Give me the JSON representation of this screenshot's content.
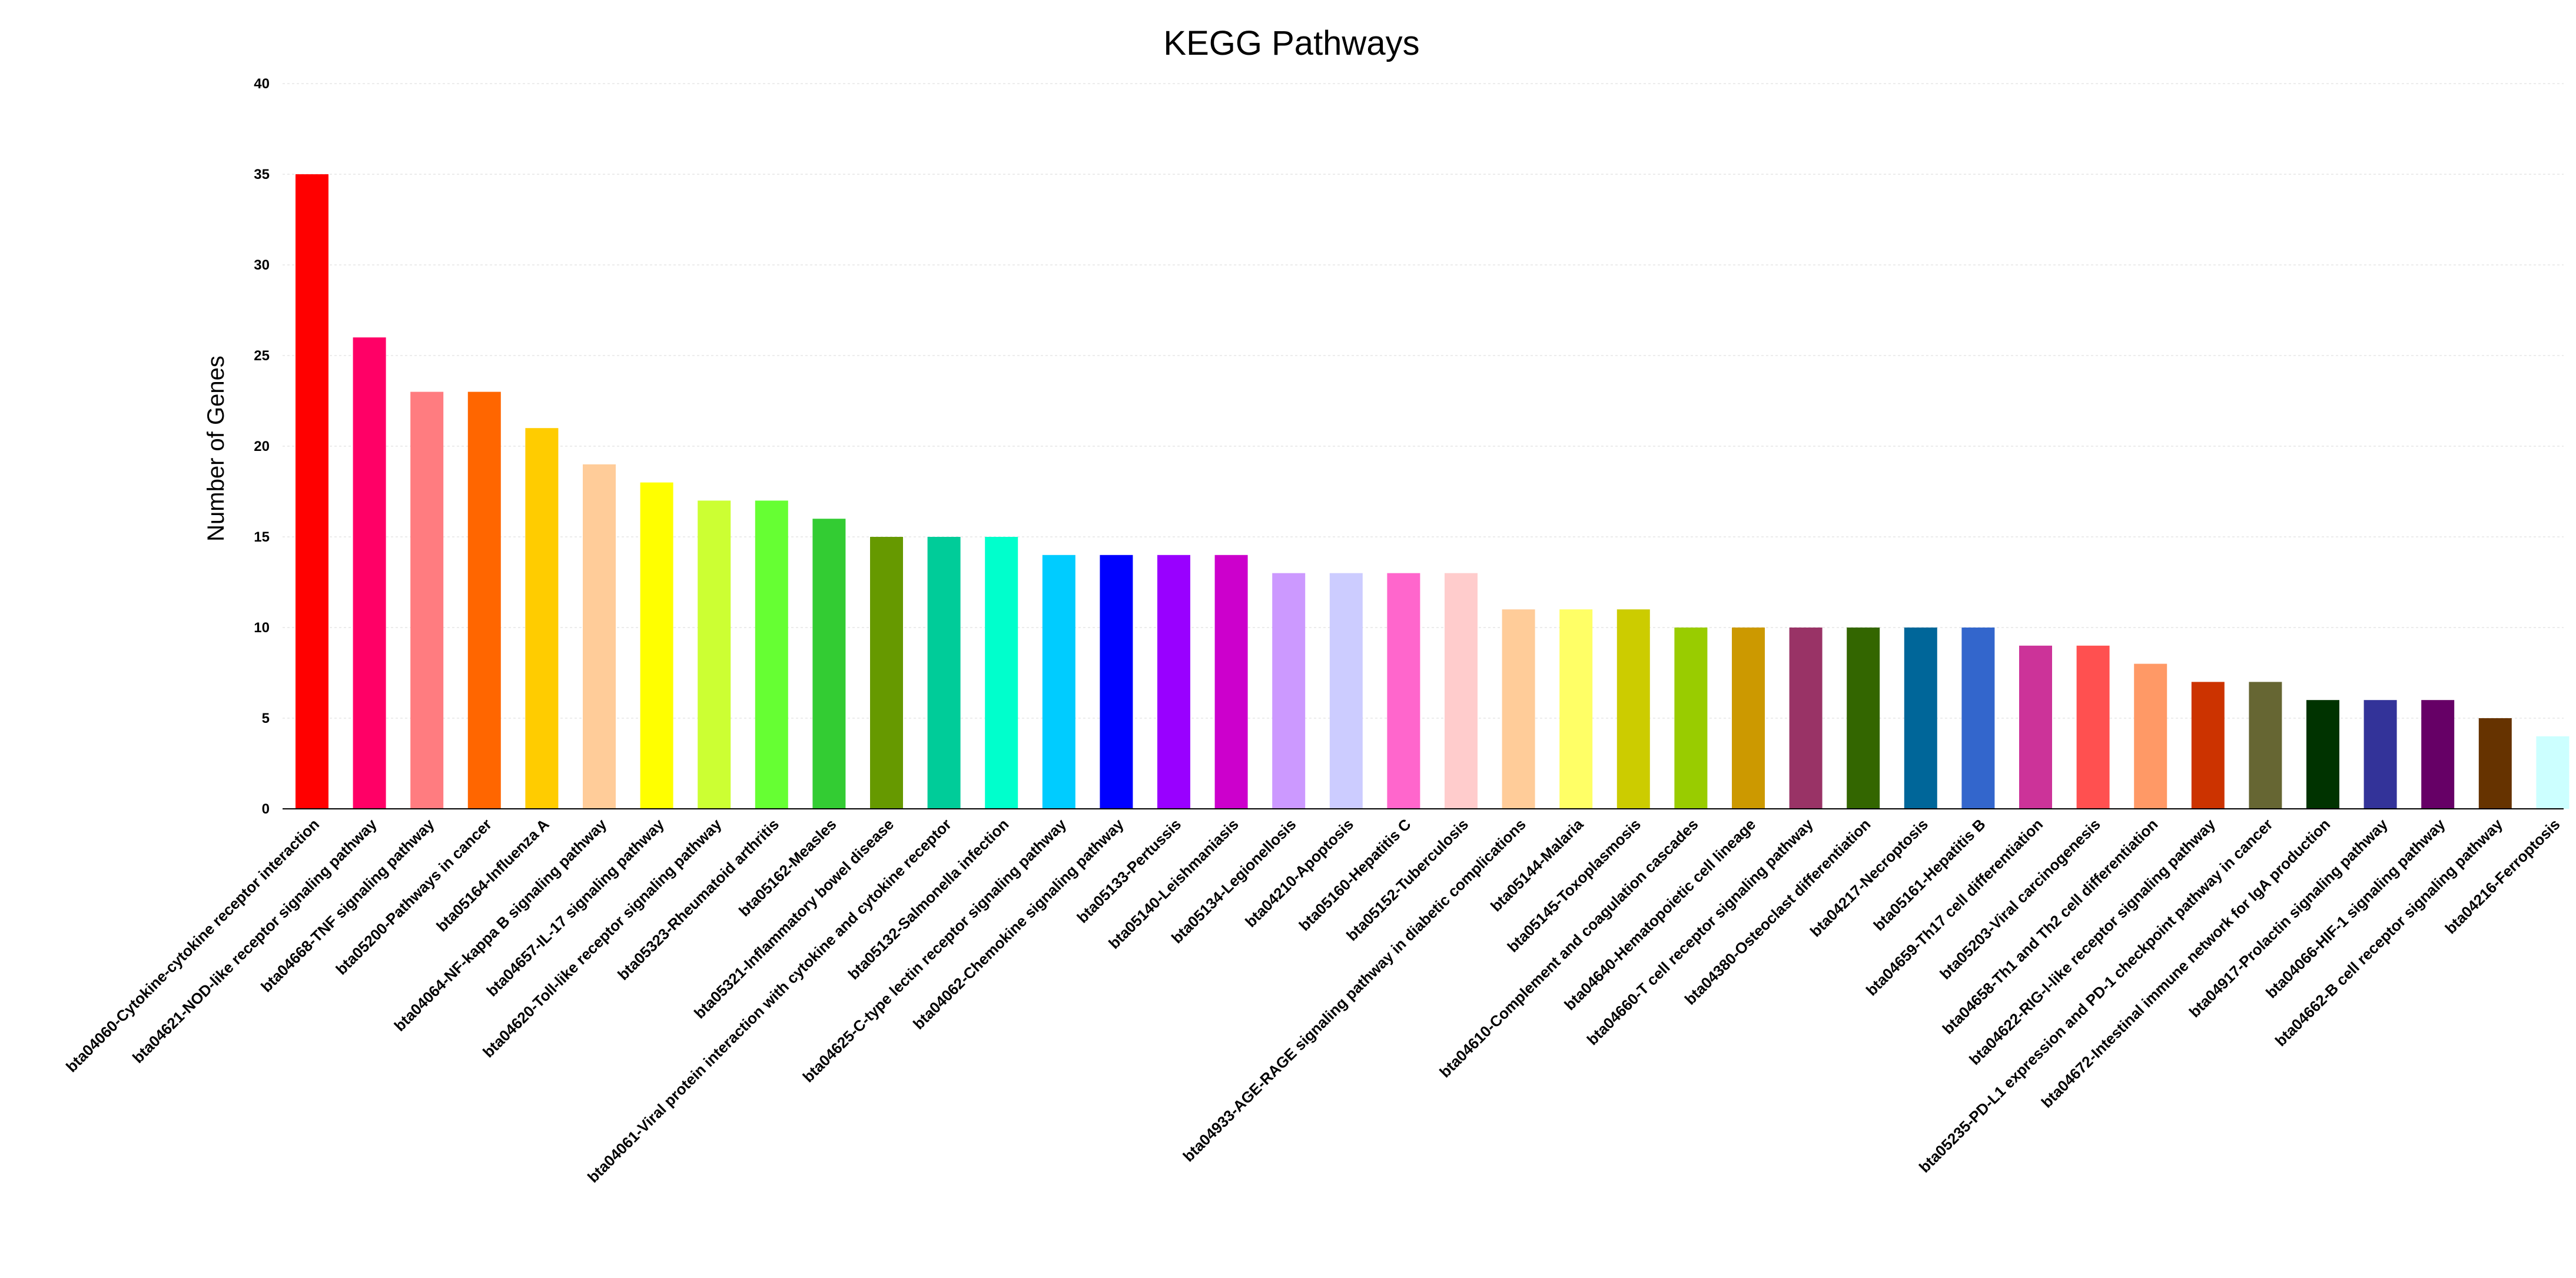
{
  "chart_data": {
    "type": "bar",
    "title": "KEGG Pathways",
    "xlabel": "",
    "ylabel": "Number of Genes",
    "ylim": [
      0,
      40
    ],
    "yticks": [
      0,
      5,
      10,
      15,
      20,
      25,
      30,
      35,
      40
    ],
    "grid": true,
    "legend": "none",
    "categories": [
      "bta04060-Cytokine-cytokine receptor interaction",
      "bta04621-NOD-like receptor signaling pathway",
      "bta04668-TNF signaling pathway",
      "bta05200-Pathways in cancer",
      "bta05164-Influenza A",
      "bta04064-NF-kappa B signaling pathway",
      "bta04657-IL-17 signaling pathway",
      "bta04620-Toll-like receptor signaling pathway",
      "bta05323-Rheumatoid arthritis",
      "bta05162-Measles",
      "bta05321-Inflammatory bowel disease",
      "bta04061-Viral protein interaction with cytokine and cytokine receptor",
      "bta05132-Salmonella infection",
      "bta04625-C-type lectin receptor signaling pathway",
      "bta04062-Chemokine signaling pathway",
      "bta05133-Pertussis",
      "bta05140-Leishmaniasis",
      "bta05134-Legionellosis",
      "bta04210-Apoptosis",
      "bta05160-Hepatitis C",
      "bta05152-Tuberculosis",
      "bta04933-AGE-RAGE signaling pathway in diabetic complications",
      "bta05144-Malaria",
      "bta05145-Toxoplasmosis",
      "bta04610-Complement and coagulation cascades",
      "bta04640-Hematopoietic cell lineage",
      "bta04660-T cell receptor signaling pathway",
      "bta04380-Osteoclast differentiation",
      "bta04217-Necroptosis",
      "bta05161-Hepatitis B",
      "bta04659-Th17 cell differentiation",
      "bta05203-Viral carcinogenesis",
      "bta04658-Th1 and Th2 cell differentiation",
      "bta04622-RIG-I-like receptor signaling pathway",
      "bta05235-PD-L1 expression and PD-1 checkpoint pathway in cancer",
      "bta04672-Intestinal immune network for IgA production",
      "bta04917-Prolactin signaling pathway",
      "bta04066-HIF-1 signaling pathway",
      "bta04662-B cell receptor signaling pathway",
      "bta04216-Ferroptosis"
    ],
    "values": [
      35,
      26,
      23,
      23,
      21,
      19,
      18,
      17,
      17,
      16,
      15,
      15,
      15,
      14,
      14,
      14,
      14,
      13,
      13,
      13,
      13,
      11,
      11,
      11,
      10,
      10,
      10,
      10,
      10,
      10,
      9,
      9,
      8,
      7,
      7,
      6,
      6,
      6,
      5,
      4
    ],
    "colors": [
      "#ff0000",
      "#ff0066",
      "#ff7c80",
      "#ff6600",
      "#ffcc00",
      "#ffcc99",
      "#ffff00",
      "#ccff33",
      "#66ff33",
      "#33cc33",
      "#669900",
      "#00cc99",
      "#00ffcc",
      "#00ccff",
      "#0000ff",
      "#9900ff",
      "#cc00cc",
      "#cc99ff",
      "#ccccff",
      "#ff66cc",
      "#ffcccc",
      "#ffcc99",
      "#ffff66",
      "#cccc00",
      "#99cc00",
      "#cc9900",
      "#993366",
      "#336600",
      "#006699",
      "#3366cc",
      "#cc3399",
      "#ff5050",
      "#ff9966",
      "#cc3300",
      "#666633",
      "#003300",
      "#333399",
      "#660066",
      "#663300",
      "#ccffff"
    ]
  }
}
